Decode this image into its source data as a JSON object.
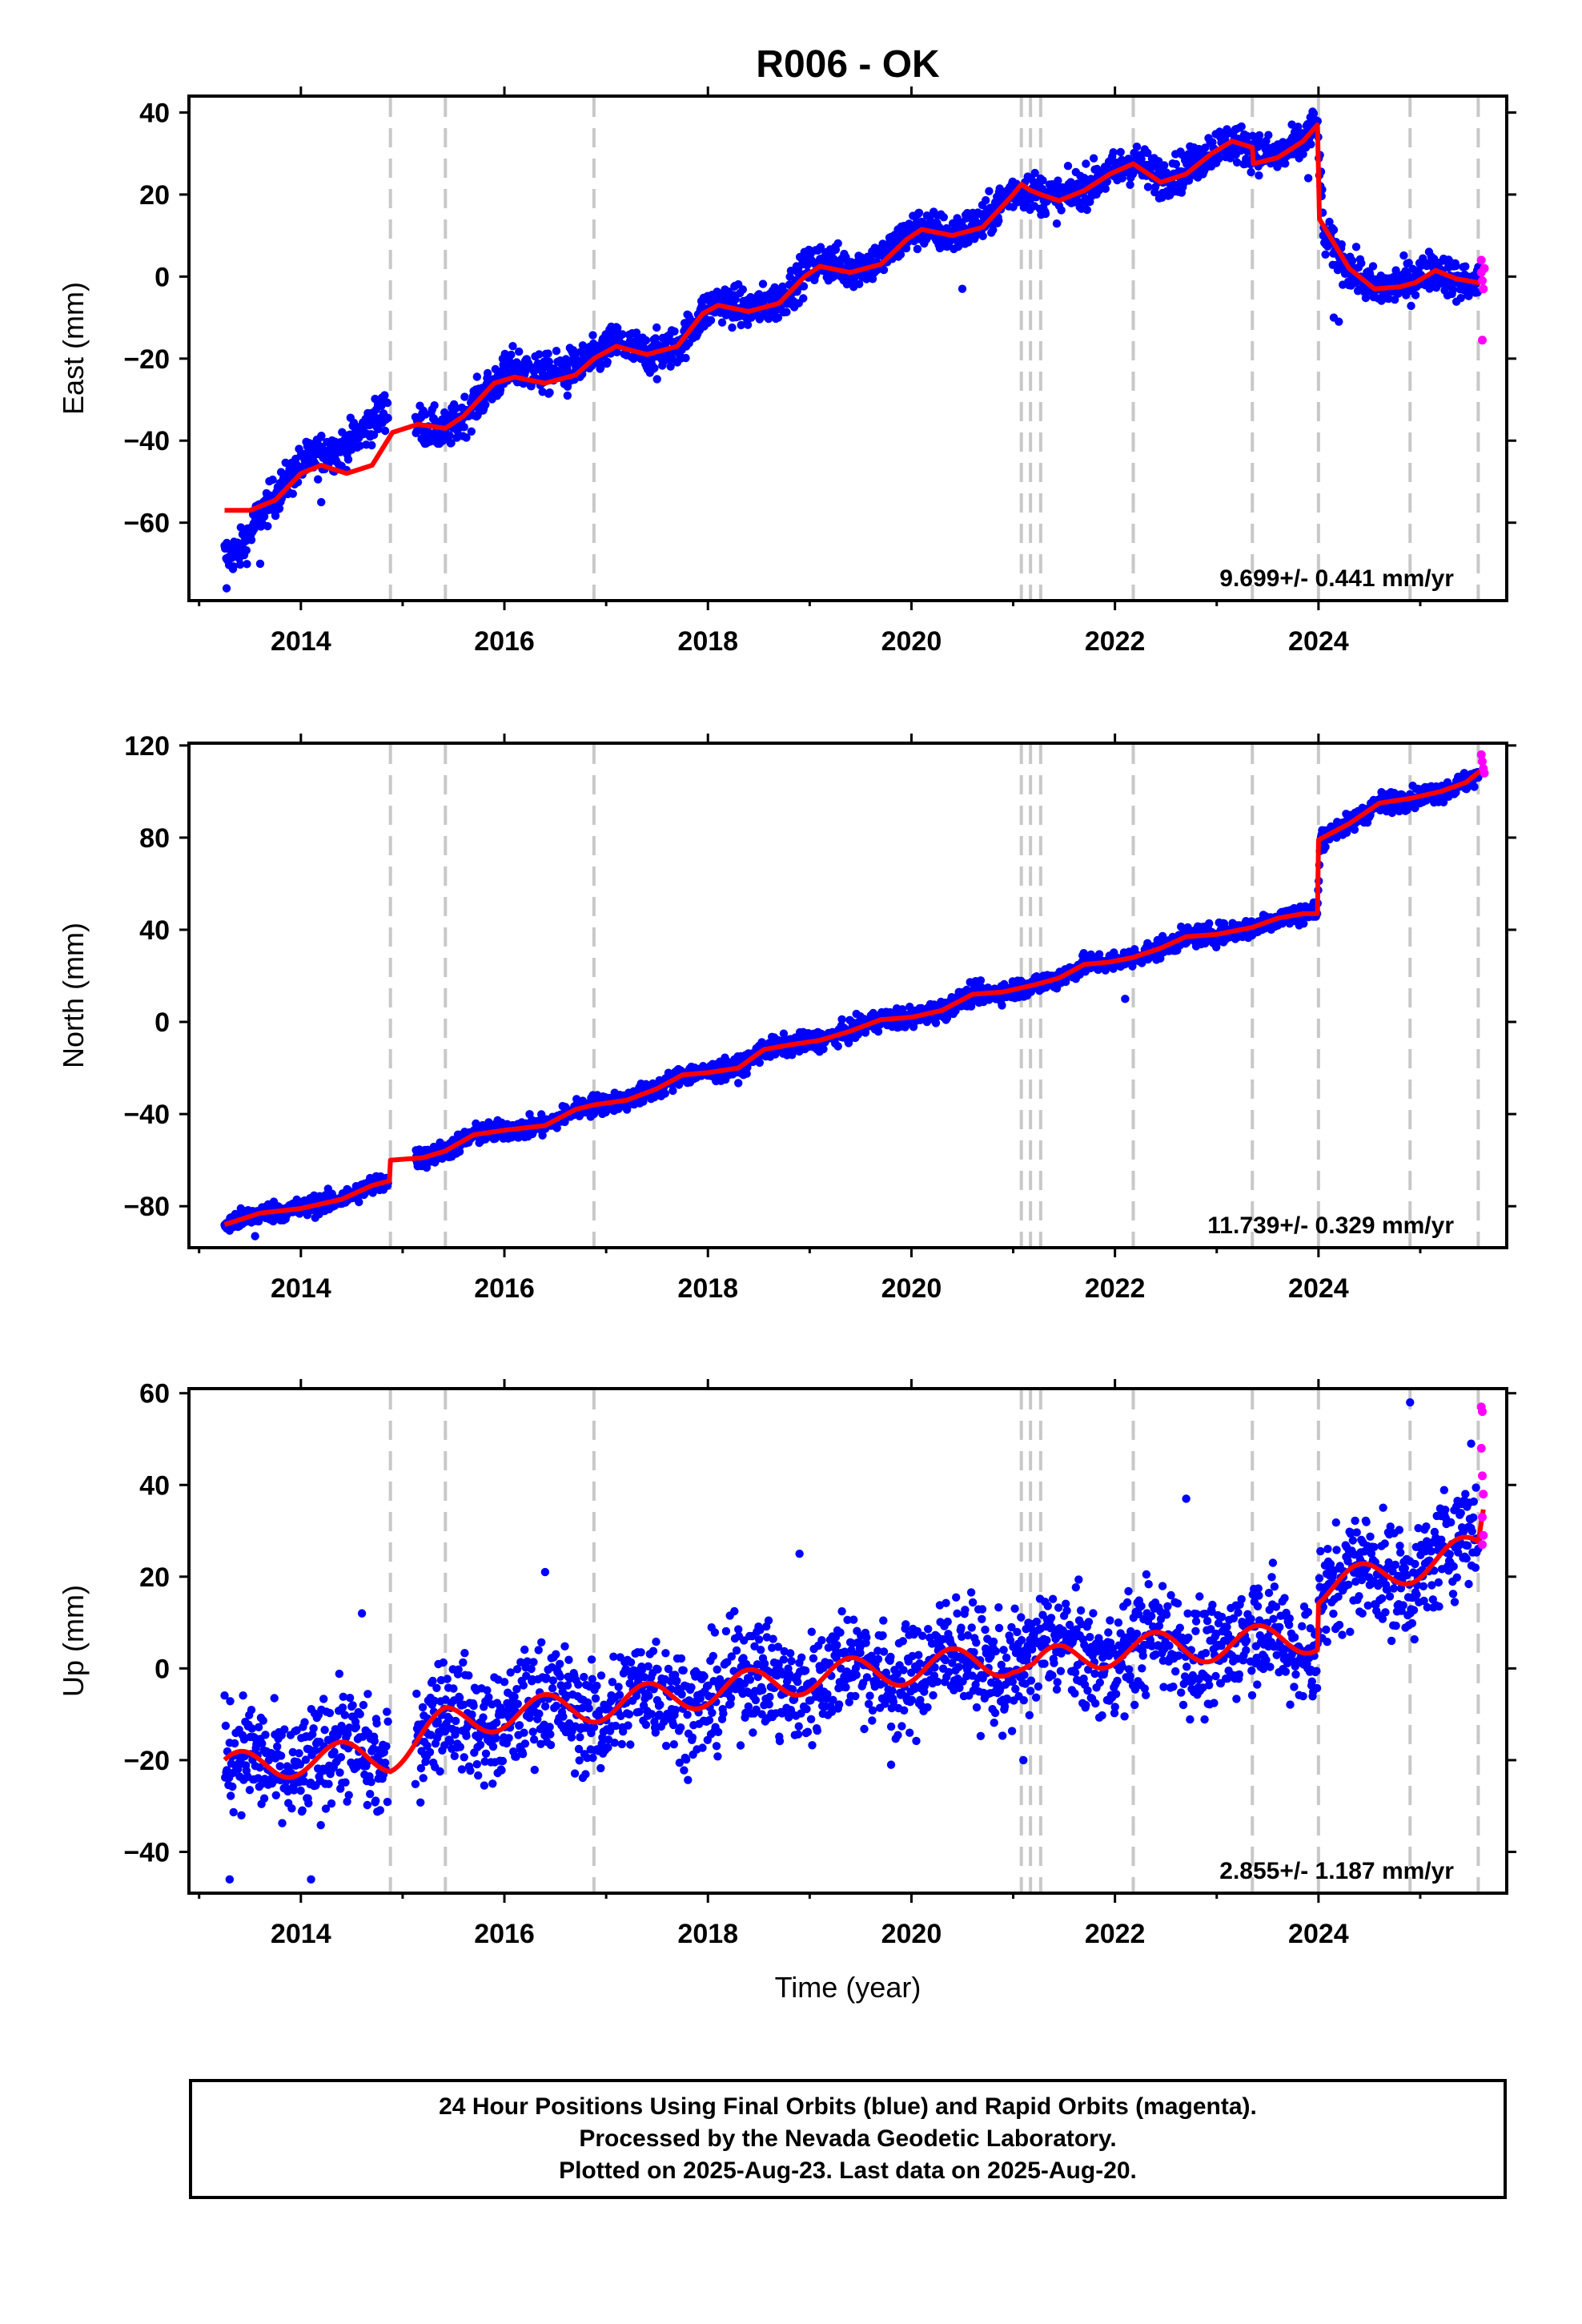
{
  "title": "R006 - OK",
  "colors": {
    "final": "#0000ff",
    "rapid": "#ff00ff",
    "model": "#ff0000",
    "step_lines": "#c8c8c8",
    "frame": "#000000"
  },
  "x_axis": {
    "label": "Time (year)",
    "ticks": [
      2014,
      2016,
      2018,
      2020,
      2022,
      2024
    ],
    "range": [
      2012.9,
      2025.85
    ]
  },
  "step_dates": [
    2014.88,
    2015.42,
    2016.88,
    2021.08,
    2021.17,
    2021.27,
    2022.18,
    2023.35,
    2024.0,
    2024.9,
    2025.57
  ],
  "chart_data": [
    {
      "type": "scatter",
      "component": "East",
      "ylabel": "East (mm)",
      "ylim": [
        -79,
        44
      ],
      "yticks": [
        -60,
        -40,
        -20,
        0,
        20,
        40
      ],
      "rate": "9.699+/- 0.441 mm/yr",
      "model_line": {
        "name": "model",
        "points": [
          [
            2013.25,
            -57
          ],
          [
            2013.5,
            -57
          ],
          [
            2013.75,
            -54.5
          ],
          [
            2014.0,
            -48
          ],
          [
            2014.2,
            -46
          ],
          [
            2014.45,
            -48
          ],
          [
            2014.7,
            -46
          ],
          [
            2014.9,
            -38
          ],
          [
            2015.15,
            -36
          ],
          [
            2015.42,
            -37
          ],
          [
            2015.6,
            -34
          ],
          [
            2015.9,
            -26
          ],
          [
            2016.1,
            -24.5
          ],
          [
            2016.4,
            -26
          ],
          [
            2016.7,
            -24
          ],
          [
            2016.88,
            -20
          ],
          [
            2017.1,
            -17
          ],
          [
            2017.4,
            -19
          ],
          [
            2017.7,
            -17
          ],
          [
            2017.95,
            -9
          ],
          [
            2018.1,
            -7
          ],
          [
            2018.4,
            -8.5
          ],
          [
            2018.7,
            -6.5
          ],
          [
            2018.95,
            0
          ],
          [
            2019.1,
            2.5
          ],
          [
            2019.4,
            1
          ],
          [
            2019.7,
            3
          ],
          [
            2019.95,
            9
          ],
          [
            2020.1,
            11.5
          ],
          [
            2020.4,
            10
          ],
          [
            2020.7,
            12
          ],
          [
            2021.0,
            20
          ],
          [
            2021.08,
            22.5
          ],
          [
            2021.17,
            21
          ],
          [
            2021.27,
            20
          ],
          [
            2021.45,
            18.5
          ],
          [
            2021.7,
            21
          ],
          [
            2021.95,
            25
          ],
          [
            2022.18,
            27.5
          ],
          [
            2022.45,
            23
          ],
          [
            2022.7,
            25
          ],
          [
            2022.95,
            30
          ],
          [
            2023.15,
            33
          ],
          [
            2023.35,
            31.5
          ],
          [
            2023.36,
            27.5
          ],
          [
            2023.6,
            29
          ],
          [
            2023.85,
            33
          ],
          [
            2023.99,
            37
          ],
          [
            2024.01,
            14
          ],
          [
            2024.3,
            2
          ],
          [
            2024.55,
            -3
          ],
          [
            2024.8,
            -2.5
          ],
          [
            2024.95,
            -1.5
          ],
          [
            2025.15,
            1.5
          ],
          [
            2025.35,
            -0.5
          ],
          [
            2025.57,
            -1.5
          ],
          [
            2025.62,
            -0.5
          ]
        ]
      },
      "final_series": {
        "name": "Final Orbits",
        "points": [
          [
            2013.25,
            -68
          ],
          [
            2013.4,
            -67
          ],
          [
            2013.6,
            -58
          ],
          [
            2013.8,
            -52
          ],
          [
            2014.0,
            -46
          ],
          [
            2014.2,
            -43
          ],
          [
            2014.4,
            -42
          ],
          [
            2014.6,
            -38
          ],
          [
            2014.85,
            -32
          ],
          [
            2015.15,
            -36
          ],
          [
            2015.42,
            -38
          ],
          [
            2015.6,
            -34
          ],
          [
            2015.9,
            -26
          ],
          [
            2016.1,
            -22
          ],
          [
            2016.4,
            -24
          ],
          [
            2016.7,
            -22
          ],
          [
            2016.88,
            -20
          ],
          [
            2017.1,
            -16
          ],
          [
            2017.4,
            -19
          ],
          [
            2017.7,
            -17
          ],
          [
            2017.95,
            -9
          ],
          [
            2018.1,
            -6
          ],
          [
            2018.4,
            -8
          ],
          [
            2018.7,
            -6
          ],
          [
            2018.95,
            1
          ],
          [
            2019.1,
            4
          ],
          [
            2019.4,
            2
          ],
          [
            2019.7,
            4
          ],
          [
            2019.95,
            10
          ],
          [
            2020.1,
            12
          ],
          [
            2020.4,
            10
          ],
          [
            2020.7,
            13
          ],
          [
            2021.0,
            21
          ],
          [
            2021.17,
            21
          ],
          [
            2021.45,
            19
          ],
          [
            2021.7,
            22
          ],
          [
            2021.95,
            25
          ],
          [
            2022.18,
            28
          ],
          [
            2022.45,
            24
          ],
          [
            2022.7,
            26
          ],
          [
            2022.95,
            31
          ],
          [
            2023.15,
            33
          ],
          [
            2023.35,
            31
          ],
          [
            2023.6,
            29
          ],
          [
            2023.85,
            33
          ],
          [
            2023.99,
            37
          ],
          [
            2024.05,
            10
          ],
          [
            2024.3,
            2
          ],
          [
            2024.55,
            -3
          ],
          [
            2024.8,
            -2
          ],
          [
            2025.15,
            2
          ],
          [
            2025.35,
            -1
          ],
          [
            2025.55,
            -2
          ]
        ],
        "scatter_mm": 2.4
      },
      "rapid_series": {
        "name": "Rapid Orbits",
        "points": [
          [
            2025.6,
            4
          ],
          [
            2025.6,
            1
          ],
          [
            2025.61,
            -1
          ],
          [
            2025.62,
            -3
          ],
          [
            2025.61,
            -15.5
          ],
          [
            2025.63,
            2
          ]
        ]
      },
      "outliers": [
        [
          2013.27,
          -76
        ],
        [
          2013.6,
          -70
        ],
        [
          2014.2,
          -55
        ],
        [
          2016.62,
          -29
        ],
        [
          2017.5,
          -25
        ],
        [
          2020.5,
          -3
        ],
        [
          2023.9,
          24
        ],
        [
          2024.15,
          -10
        ],
        [
          2024.2,
          -11
        ]
      ]
    },
    {
      "type": "scatter",
      "component": "North",
      "ylabel": "North (mm)",
      "ylim": [
        -98,
        121
      ],
      "yticks": [
        -80,
        -40,
        0,
        40,
        80,
        120
      ],
      "rate": "11.739+/- 0.329 mm/yr",
      "model_line": {
        "name": "model",
        "points": [
          [
            2013.25,
            -88
          ],
          [
            2013.6,
            -83
          ],
          [
            2014.0,
            -81
          ],
          [
            2014.4,
            -77
          ],
          [
            2014.7,
            -71
          ],
          [
            2014.87,
            -69
          ],
          [
            2014.88,
            -60
          ],
          [
            2015.2,
            -59
          ],
          [
            2015.42,
            -56
          ],
          [
            2015.7,
            -49
          ],
          [
            2016.0,
            -47
          ],
          [
            2016.4,
            -45
          ],
          [
            2016.7,
            -38
          ],
          [
            2016.88,
            -36
          ],
          [
            2017.2,
            -34
          ],
          [
            2017.5,
            -29
          ],
          [
            2017.75,
            -23
          ],
          [
            2018.0,
            -22
          ],
          [
            2018.3,
            -20
          ],
          [
            2018.55,
            -12
          ],
          [
            2018.8,
            -10
          ],
          [
            2019.1,
            -8
          ],
          [
            2019.4,
            -4
          ],
          [
            2019.7,
            1
          ],
          [
            2020.0,
            2
          ],
          [
            2020.3,
            5
          ],
          [
            2020.6,
            12
          ],
          [
            2020.9,
            13
          ],
          [
            2021.2,
            16
          ],
          [
            2021.45,
            19
          ],
          [
            2021.7,
            25
          ],
          [
            2021.95,
            26
          ],
          [
            2022.18,
            28
          ],
          [
            2022.45,
            32
          ],
          [
            2022.7,
            37
          ],
          [
            2023.0,
            38
          ],
          [
            2023.35,
            41
          ],
          [
            2023.6,
            45
          ],
          [
            2023.85,
            47
          ],
          [
            2023.99,
            47
          ],
          [
            2024.0,
            79
          ],
          [
            2024.3,
            86
          ],
          [
            2024.6,
            95
          ],
          [
            2024.9,
            97
          ],
          [
            2025.2,
            100
          ],
          [
            2025.45,
            104
          ],
          [
            2025.62,
            110
          ]
        ]
      },
      "final_series": {
        "name": "Final Orbits",
        "points": [
          [
            2013.25,
            -88
          ],
          [
            2013.6,
            -83
          ],
          [
            2014.0,
            -81
          ],
          [
            2014.4,
            -77
          ],
          [
            2014.7,
            -71
          ],
          [
            2014.87,
            -69
          ],
          [
            2014.9,
            -60
          ],
          [
            2015.2,
            -59
          ],
          [
            2015.42,
            -56
          ],
          [
            2015.7,
            -49
          ],
          [
            2016.0,
            -47
          ],
          [
            2016.4,
            -45
          ],
          [
            2016.7,
            -38
          ],
          [
            2016.88,
            -36
          ],
          [
            2017.2,
            -34
          ],
          [
            2017.5,
            -29
          ],
          [
            2017.75,
            -23
          ],
          [
            2018.0,
            -22
          ],
          [
            2018.3,
            -20
          ],
          [
            2018.55,
            -12
          ],
          [
            2018.8,
            -10
          ],
          [
            2019.1,
            -8
          ],
          [
            2019.4,
            -4
          ],
          [
            2019.7,
            1
          ],
          [
            2020.0,
            2
          ],
          [
            2020.3,
            5
          ],
          [
            2020.6,
            12
          ],
          [
            2020.9,
            13
          ],
          [
            2021.2,
            16
          ],
          [
            2021.45,
            19
          ],
          [
            2021.7,
            25
          ],
          [
            2021.95,
            26
          ],
          [
            2022.18,
            28
          ],
          [
            2022.45,
            32
          ],
          [
            2022.7,
            37
          ],
          [
            2023.0,
            38
          ],
          [
            2023.35,
            41
          ],
          [
            2023.6,
            45
          ],
          [
            2023.85,
            47
          ],
          [
            2023.99,
            48
          ],
          [
            2024.02,
            80
          ],
          [
            2024.3,
            86
          ],
          [
            2024.6,
            95
          ],
          [
            2024.9,
            97
          ],
          [
            2025.2,
            100
          ],
          [
            2025.45,
            104
          ],
          [
            2025.56,
            107
          ]
        ],
        "scatter_mm": 2.2
      },
      "rapid_series": {
        "name": "Rapid Orbits",
        "points": [
          [
            2025.6,
            116
          ],
          [
            2025.61,
            113
          ],
          [
            2025.62,
            110
          ],
          [
            2025.63,
            108
          ]
        ]
      },
      "outliers": [
        [
          2013.55,
          -93
        ],
        [
          2022.1,
          10
        ],
        [
          2016.2,
          -50
        ],
        [
          2019.9,
          -2
        ]
      ]
    },
    {
      "type": "scatter",
      "component": "Up",
      "ylabel": "Up (mm)",
      "ylim": [
        -49,
        61
      ],
      "yticks": [
        -40,
        -20,
        0,
        20,
        40,
        60
      ],
      "rate": "2.855+/- 1.187 mm/yr",
      "model_line": {
        "name": "model",
        "amplitude_mm": 3.5,
        "trend": [
          [
            2013.25,
            -22
          ],
          [
            2014.0,
            -20
          ],
          [
            2014.88,
            -19
          ],
          [
            2015.42,
            -12
          ],
          [
            2016.0,
            -10
          ],
          [
            2017.0,
            -8
          ],
          [
            2018.0,
            -5
          ],
          [
            2019.0,
            -2
          ],
          [
            2020.0,
            0
          ],
          [
            2021.0,
            2
          ],
          [
            2021.2,
            0
          ],
          [
            2021.5,
            2
          ],
          [
            2022.0,
            4
          ],
          [
            2023.0,
            5
          ],
          [
            2023.99,
            7
          ],
          [
            2024.0,
            17
          ],
          [
            2024.9,
            22
          ],
          [
            2025.57,
            26
          ],
          [
            2025.62,
            34
          ]
        ]
      },
      "final_series": {
        "name": "Final Orbits",
        "trend": [
          [
            2013.25,
            -22
          ],
          [
            2014.0,
            -20
          ],
          [
            2014.88,
            -19
          ],
          [
            2015.42,
            -12
          ],
          [
            2016.0,
            -10
          ],
          [
            2017.0,
            -8
          ],
          [
            2018.0,
            -5
          ],
          [
            2019.0,
            -2
          ],
          [
            2020.0,
            0
          ],
          [
            2021.0,
            2
          ],
          [
            2022.0,
            4
          ],
          [
            2023.0,
            5
          ],
          [
            2023.99,
            7
          ],
          [
            2024.0,
            17
          ],
          [
            2024.9,
            22
          ],
          [
            2025.57,
            28
          ]
        ],
        "scatter_mm": 6.0
      },
      "rapid_series": {
        "name": "Rapid Orbits",
        "points": [
          [
            2025.6,
            57
          ],
          [
            2025.61,
            56
          ],
          [
            2025.6,
            48
          ],
          [
            2025.61,
            42
          ],
          [
            2025.62,
            38
          ],
          [
            2025.61,
            33
          ],
          [
            2025.62,
            29
          ],
          [
            2025.61,
            27
          ]
        ]
      },
      "outliers": [
        [
          2013.3,
          -46
        ],
        [
          2014.1,
          -46
        ],
        [
          2014.6,
          12
        ],
        [
          2016.4,
          21
        ],
        [
          2018.9,
          25
        ],
        [
          2019.8,
          -21
        ],
        [
          2021.1,
          -20
        ],
        [
          2022.7,
          37
        ],
        [
          2024.9,
          58
        ],
        [
          2025.5,
          49
        ]
      ]
    }
  ],
  "footer": {
    "line1": "24 Hour Positions Using Final Orbits (blue) and Rapid Orbits (magenta).",
    "line2": "Processed by the Nevada Geodetic Laboratory.",
    "line3": "Plotted on 2025-Aug-23. Last data on 2025-Aug-20."
  }
}
